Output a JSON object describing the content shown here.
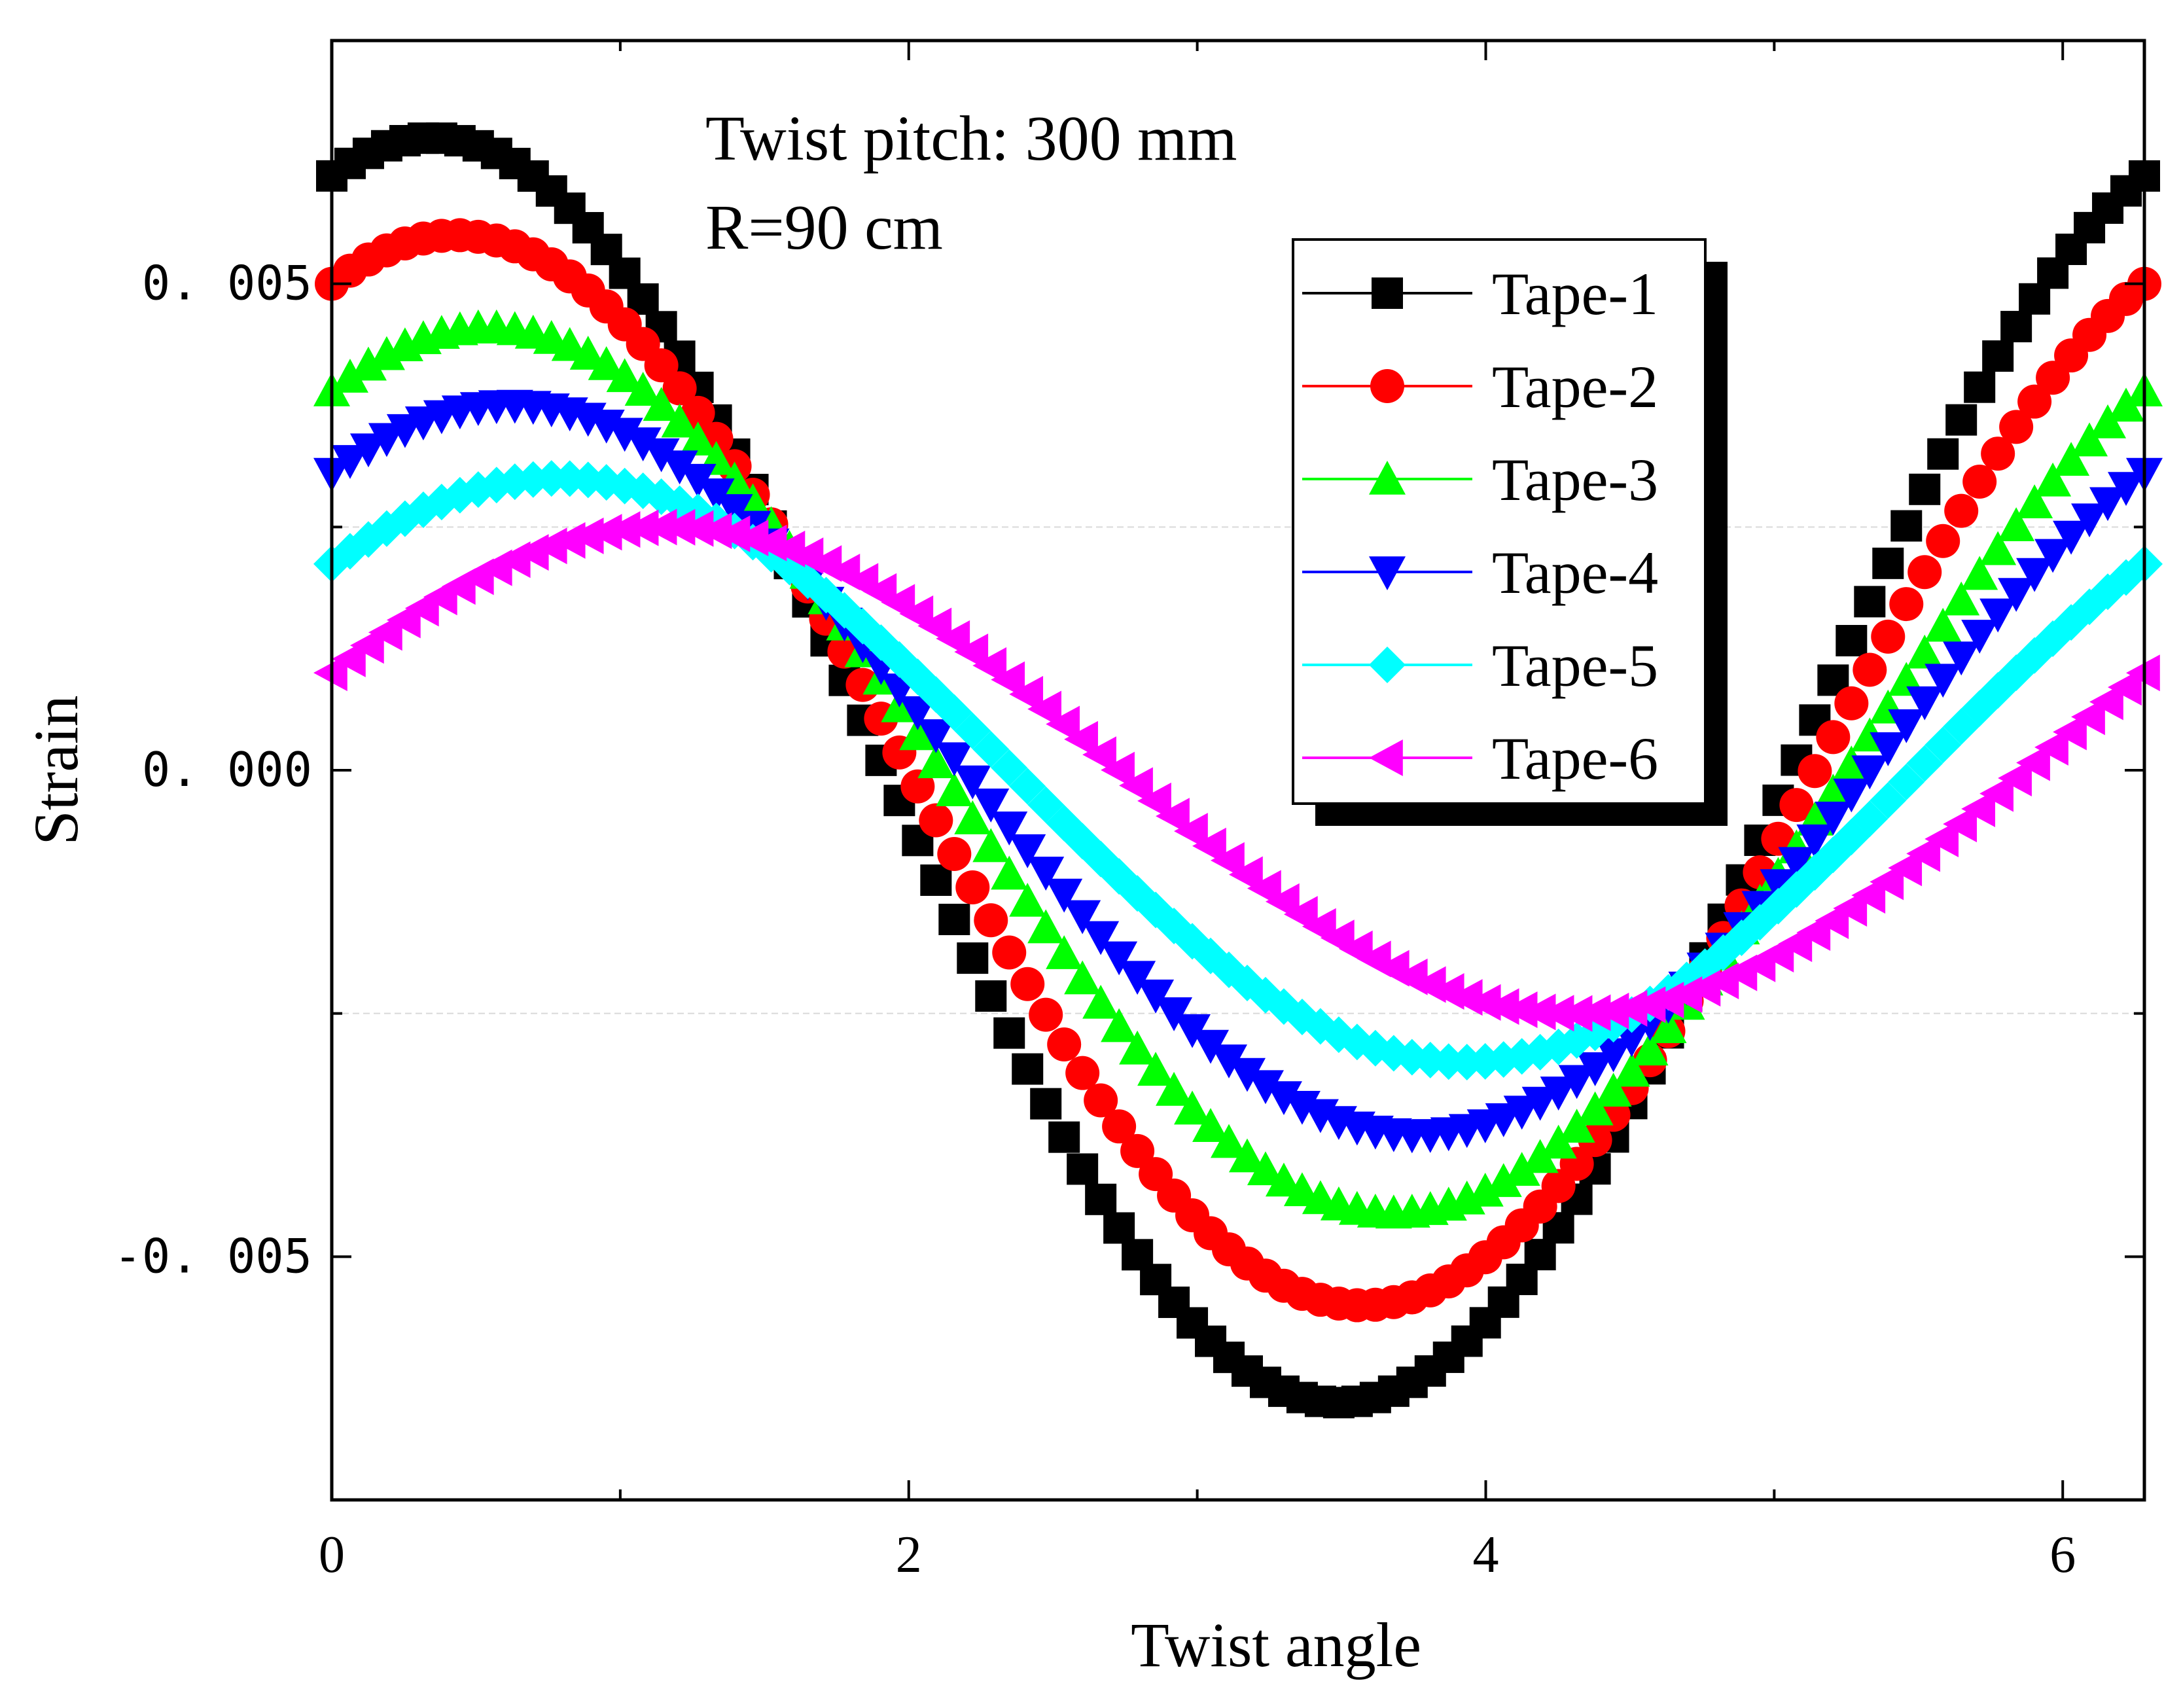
{
  "chart_data": {
    "type": "scatter",
    "title": "",
    "xlabel": "Twist angle",
    "ylabel": "Strain",
    "xlim": [
      0,
      6.283
    ],
    "ylim": [
      -0.0075,
      0.0075
    ],
    "xticks": [
      {
        "value": 0,
        "label": "0"
      },
      {
        "value": 2,
        "label": "2"
      },
      {
        "value": 4,
        "label": "4"
      },
      {
        "value": 6,
        "label": "6"
      }
    ],
    "yticks": [
      {
        "value": 0.005,
        "label": "0. 005"
      },
      {
        "value": 0,
        "label": "0. 000"
      },
      {
        "value": -0.005,
        "label": "-0. 005"
      }
    ],
    "gridlines_y": [
      0.0025,
      -0.0025
    ],
    "annotations": [
      "Twist pitch: 300 mm",
      "R=90 cm"
    ],
    "legend_position": "top-right",
    "n_points": 100,
    "model": "strain = amplitude * sin(x + phase)",
    "series": [
      {
        "name": "Tape-1",
        "marker": "square",
        "color": "#000000",
        "amplitude": 0.0065,
        "phase": 1.222
      },
      {
        "name": "Tape-2",
        "marker": "circle",
        "color": "#ff0000",
        "amplitude": 0.0055,
        "phase": 1.141
      },
      {
        "name": "Tape-3",
        "marker": "triangle-up",
        "color": "#00ff00",
        "amplitude": 0.00455,
        "phase": 1.03
      },
      {
        "name": "Tape-4",
        "marker": "triangle-down",
        "color": "#0000ff",
        "amplitude": 0.00375,
        "phase": 0.95
      },
      {
        "name": "Tape-5",
        "marker": "diamond",
        "color": "#00ffff",
        "amplitude": 0.003,
        "phase": 0.785
      },
      {
        "name": "Tape-6",
        "marker": "triangle-left",
        "color": "#ff00ff",
        "amplitude": 0.0025,
        "phase": 0.412
      }
    ]
  }
}
